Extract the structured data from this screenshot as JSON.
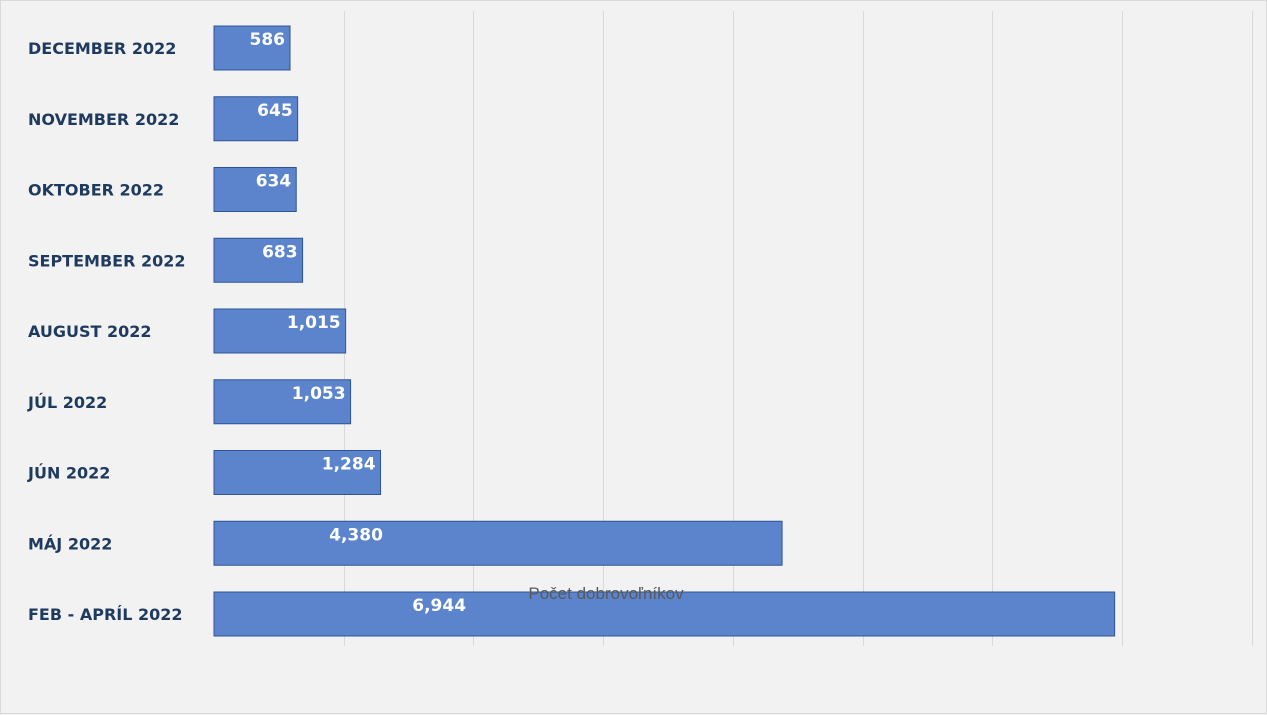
{
  "chart_data": {
    "type": "bar",
    "orientation": "horizontal",
    "categories": [
      "DECEMBER 2022",
      "NOVEMBER 2022",
      "OKTOBER 2022",
      "SEPTEMBER 2022",
      "AUGUST 2022",
      "JÚL 2022",
      "JÚN 2022",
      "MÁJ 2022",
      "FEB - APRÍL 2022"
    ],
    "values": [
      586,
      645,
      634,
      683,
      1015,
      1053,
      1284,
      4380,
      6944
    ],
    "value_labels": [
      "586",
      "645",
      "634",
      "683",
      "1,015",
      "1,053",
      "1,284",
      "4,380",
      "6,944"
    ],
    "title": "",
    "xlabel": "Počet dobrovoľníkov",
    "ylabel": "",
    "xlim": [
      0,
      8000
    ],
    "grid": true,
    "legend": "none",
    "bar_color": "#5b84cc",
    "bar_edge_color": "#2f5597"
  }
}
